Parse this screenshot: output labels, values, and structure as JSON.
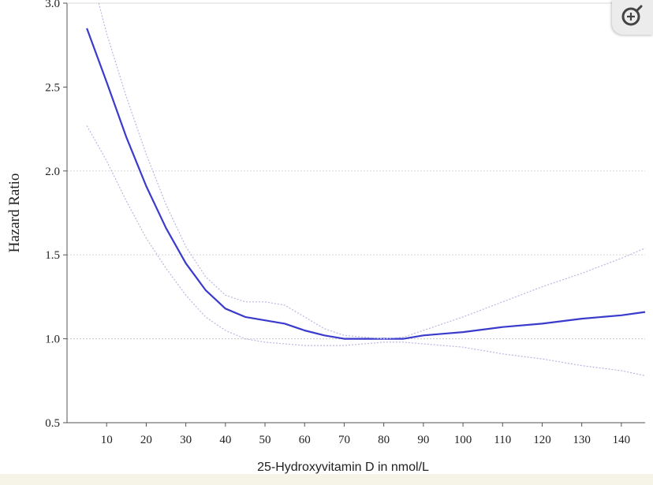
{
  "colors": {
    "main_line": "#3a3acc",
    "ci_line": "#b8b8e0",
    "ref_line": "#d0d0d0",
    "axis": "#555555"
  },
  "zoom_button": {
    "icon": "zoom-in-icon"
  },
  "chart_data": {
    "type": "line",
    "title": "",
    "xlabel": "25-Hydroxyvitamin D in nmol/L",
    "ylabel": "Hazard Ratio",
    "xlim": [
      0,
      146
    ],
    "ylim": [
      0.5,
      3.0
    ],
    "xticks": [
      10,
      20,
      30,
      40,
      50,
      60,
      70,
      80,
      90,
      100,
      110,
      120,
      130,
      140
    ],
    "yticks": [
      "0.5",
      "1.0",
      "1.5",
      "2.0",
      "2.5",
      "3.0"
    ],
    "reference_lines": [
      1.0,
      1.5,
      2.0
    ],
    "grid": false,
    "legend": "none",
    "series": [
      {
        "role": "estimate",
        "x": [
          5,
          10,
          15,
          20,
          25,
          30,
          35,
          40,
          45,
          50,
          55,
          60,
          65,
          70,
          75,
          80,
          85,
          90,
          95,
          100,
          110,
          120,
          130,
          140,
          146
        ],
        "y": [
          2.85,
          2.53,
          2.2,
          1.91,
          1.66,
          1.45,
          1.29,
          1.18,
          1.13,
          1.11,
          1.09,
          1.05,
          1.02,
          1.0,
          1.0,
          1.0,
          1.0,
          1.02,
          1.03,
          1.04,
          1.07,
          1.09,
          1.12,
          1.14,
          1.16
        ]
      },
      {
        "role": "upper-ci",
        "x": [
          8,
          10,
          15,
          20,
          25,
          30,
          35,
          40,
          45,
          50,
          55,
          60,
          65,
          70,
          75,
          80,
          85,
          90,
          95,
          100,
          110,
          120,
          130,
          140,
          146
        ],
        "y": [
          3.0,
          2.82,
          2.44,
          2.1,
          1.8,
          1.55,
          1.37,
          1.26,
          1.22,
          1.22,
          1.2,
          1.13,
          1.06,
          1.02,
          1.01,
          1.0,
          1.01,
          1.05,
          1.09,
          1.13,
          1.22,
          1.31,
          1.39,
          1.48,
          1.54
        ]
      },
      {
        "role": "lower-ci",
        "x": [
          5,
          10,
          15,
          20,
          25,
          30,
          35,
          40,
          45,
          50,
          55,
          60,
          65,
          70,
          75,
          80,
          85,
          90,
          95,
          100,
          110,
          120,
          130,
          140,
          146
        ],
        "y": [
          2.27,
          2.06,
          1.82,
          1.6,
          1.42,
          1.26,
          1.13,
          1.05,
          1.0,
          0.98,
          0.97,
          0.96,
          0.96,
          0.96,
          0.97,
          0.98,
          0.98,
          0.97,
          0.96,
          0.95,
          0.91,
          0.88,
          0.84,
          0.81,
          0.78
        ]
      }
    ]
  }
}
